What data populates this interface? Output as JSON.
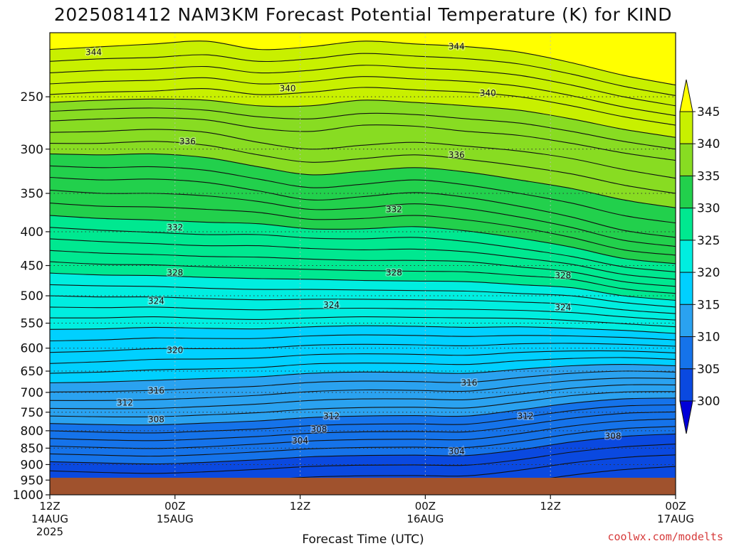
{
  "chart_data": {
    "type": "heatmap",
    "title": "2025081412 NAM3KM Forecast Potential Temperature (K) for KIND",
    "xlabel": "Forecast Time (UTC)",
    "ylabel": "",
    "credit": "coolwx.com/modelts",
    "y_axis": {
      "scale": "log",
      "range": [
        1000,
        200
      ],
      "ticks": [
        "250",
        "300",
        "350",
        "400",
        "450",
        "500",
        "550",
        "600",
        "650",
        "700",
        "750",
        "800",
        "850",
        "900",
        "950",
        "1000"
      ]
    },
    "x_axis": {
      "range": [
        "2025-08-14 12Z",
        "2025-08-17 00Z"
      ],
      "ticks": [
        {
          "l1": "12Z",
          "l2": "14AUG",
          "l3": "2025"
        },
        {
          "l1": "00Z",
          "l2": "15AUG",
          "l3": ""
        },
        {
          "l1": "12Z",
          "l2": "",
          "l3": ""
        },
        {
          "l1": "00Z",
          "l2": "16AUG",
          "l3": ""
        },
        {
          "l1": "12Z",
          "l2": "",
          "l3": ""
        },
        {
          "l1": "00Z",
          "l2": "17AUG",
          "l3": ""
        }
      ]
    },
    "grid": true,
    "colorbar": {
      "position": "right",
      "labels": [
        "300",
        "305",
        "310",
        "315",
        "320",
        "325",
        "330",
        "335",
        "340",
        "345"
      ],
      "colors": [
        "#0000d8",
        "#0a49e0",
        "#1573ea",
        "#2aa2f0",
        "#00d0ff",
        "#00eee0",
        "#00e890",
        "#22d04c",
        "#88dc22",
        "#c8f000",
        "#ffff00"
      ]
    },
    "contour_labels": [
      {
        "text": "344",
        "t": 0.07,
        "p": 214
      },
      {
        "text": "344",
        "t": 0.65,
        "p": 210
      },
      {
        "text": "340",
        "t": 0.38,
        "p": 243
      },
      {
        "text": "340",
        "t": 0.7,
        "p": 247
      },
      {
        "text": "336",
        "t": 0.22,
        "p": 292
      },
      {
        "text": "336",
        "t": 0.65,
        "p": 306
      },
      {
        "text": "332",
        "t": 0.2,
        "p": 394
      },
      {
        "text": "332",
        "t": 0.55,
        "p": 370
      },
      {
        "text": "328",
        "t": 0.2,
        "p": 461
      },
      {
        "text": "328",
        "t": 0.55,
        "p": 461
      },
      {
        "text": "328",
        "t": 0.82,
        "p": 466
      },
      {
        "text": "324",
        "t": 0.17,
        "p": 509
      },
      {
        "text": "324",
        "t": 0.45,
        "p": 516
      },
      {
        "text": "324",
        "t": 0.82,
        "p": 521
      },
      {
        "text": "320",
        "t": 0.2,
        "p": 604
      },
      {
        "text": "316",
        "t": 0.17,
        "p": 696
      },
      {
        "text": "316",
        "t": 0.67,
        "p": 677
      },
      {
        "text": "312",
        "t": 0.12,
        "p": 726
      },
      {
        "text": "312",
        "t": 0.45,
        "p": 761
      },
      {
        "text": "312",
        "t": 0.76,
        "p": 761
      },
      {
        "text": "308",
        "t": 0.17,
        "p": 769
      },
      {
        "text": "308",
        "t": 0.43,
        "p": 796
      },
      {
        "text": "308",
        "t": 0.9,
        "p": 815
      },
      {
        "text": "304",
        "t": 0.4,
        "p": 828
      },
      {
        "text": "304",
        "t": 0.65,
        "p": 860
      }
    ],
    "series": [
      {
        "level": 345,
        "p": [
          200,
          200,
          200,
          200,
          200,
          200,
          200,
          200,
          200,
          200,
          200,
          200,
          200
        ]
      },
      {
        "level": 344,
        "p": [
          212,
          210,
          208,
          206,
          212,
          210,
          206,
          208,
          210,
          214,
          222,
          232,
          240
        ]
      },
      {
        "level": 343,
        "p": [
          221,
          219,
          218,
          216,
          221,
          219,
          215,
          217,
          219,
          223,
          231,
          241,
          249
        ]
      },
      {
        "level": 342,
        "p": [
          230,
          228,
          227,
          225,
          230,
          228,
          224,
          226,
          228,
          232,
          240,
          250,
          258
        ]
      },
      {
        "level": 341,
        "p": [
          239,
          237,
          236,
          234,
          239,
          237,
          233,
          235,
          237,
          241,
          249,
          259,
          267
        ]
      },
      {
        "level": 340,
        "p": [
          248,
          246,
          245,
          243,
          248,
          246,
          242,
          244,
          246,
          250,
          258,
          268,
          276
        ]
      },
      {
        "level": 339,
        "p": [
          255,
          253,
          252,
          253,
          258,
          258,
          253,
          255,
          258,
          262,
          270,
          280,
          288
        ]
      },
      {
        "level": 338,
        "p": [
          263,
          261,
          260,
          262,
          268,
          270,
          265,
          266,
          270,
          274,
          282,
          292,
          300
        ]
      },
      {
        "level": 337,
        "p": [
          272,
          270,
          269,
          271,
          279,
          282,
          276,
          277,
          282,
          286,
          294,
          304,
          312
        ]
      },
      {
        "level": 336,
        "p": [
          283,
          282,
          280,
          283,
          293,
          300,
          296,
          293,
          297,
          302,
          310,
          322,
          332
        ]
      },
      {
        "level": 335,
        "p": [
          294,
          294,
          292,
          296,
          306,
          314,
          310,
          306,
          311,
          318,
          327,
          340,
          350
        ]
      },
      {
        "level": 334,
        "p": [
          305,
          306,
          305,
          309,
          319,
          328,
          324,
          320,
          325,
          334,
          344,
          358,
          368
        ]
      },
      {
        "level": 333,
        "p": [
          318,
          320,
          319,
          323,
          333,
          343,
          339,
          334,
          340,
          350,
          362,
          378,
          388
        ]
      },
      {
        "level": 332,
        "p": [
          331,
          334,
          333,
          337,
          347,
          358,
          354,
          349,
          355,
          366,
          380,
          398,
          408
        ]
      },
      {
        "level": 331,
        "p": [
          346,
          350,
          350,
          353,
          360,
          370,
          368,
          363,
          369,
          380,
          394,
          412,
          421
        ]
      },
      {
        "level": 330,
        "p": [
          362,
          366,
          367,
          370,
          374,
          383,
          382,
          378,
          384,
          394,
          408,
          426,
          434
        ]
      },
      {
        "level": 329,
        "p": [
          378,
          382,
          384,
          387,
          389,
          396,
          396,
          393,
          399,
          409,
          422,
          439,
          447
        ]
      },
      {
        "level": 328,
        "p": [
          394,
          398,
          401,
          404,
          404,
          409,
          410,
          408,
          414,
          424,
          436,
          452,
          460
        ]
      },
      {
        "level": 327,
        "p": [
          410,
          414,
          417,
          420,
          420,
          424,
          426,
          425,
          429,
          438,
          448,
          464,
          472
        ]
      },
      {
        "level": 326,
        "p": [
          427,
          431,
          433,
          436,
          437,
          440,
          442,
          442,
          444,
          452,
          460,
          476,
          484
        ]
      },
      {
        "level": 325,
        "p": [
          444,
          448,
          449,
          452,
          454,
          456,
          458,
          459,
          460,
          466,
          472,
          488,
          496
        ]
      },
      {
        "level": 324,
        "p": [
          462,
          465,
          466,
          469,
          471,
          472,
          474,
          475,
          476,
          481,
          486,
          500,
          508
        ]
      },
      {
        "level": 323,
        "p": [
          481,
          483,
          484,
          487,
          489,
          489,
          490,
          491,
          492,
          496,
          500,
          512,
          520
        ]
      },
      {
        "level": 322,
        "p": [
          500,
          502,
          502,
          505,
          507,
          506,
          506,
          507,
          508,
          511,
          515,
          525,
          532
        ]
      },
      {
        "level": 321,
        "p": [
          520,
          521,
          520,
          523,
          525,
          523,
          522,
          523,
          524,
          526,
          530,
          538,
          544
        ]
      },
      {
        "level": 320,
        "p": [
          540,
          540,
          538,
          541,
          543,
          540,
          538,
          539,
          540,
          541,
          545,
          551,
          557
        ]
      },
      {
        "level": 319,
        "p": [
          562,
          561,
          558,
          560,
          561,
          557,
          555,
          556,
          558,
          557,
          560,
          564,
          570
        ]
      },
      {
        "level": 318,
        "p": [
          585,
          583,
          579,
          580,
          580,
          575,
          573,
          574,
          576,
          574,
          575,
          578,
          583
        ]
      },
      {
        "level": 317,
        "p": [
          609,
          606,
          601,
          601,
          600,
          594,
          592,
          593,
          595,
          591,
          590,
          592,
          596
        ]
      },
      {
        "level": 316,
        "p": [
          633,
          629,
          624,
          623,
          621,
          614,
          612,
          613,
          615,
          609,
          606,
          606,
          610
        ]
      },
      {
        "level": 315,
        "p": [
          655,
          652,
          647,
          645,
          642,
          634,
          632,
          633,
          635,
          627,
          622,
          620,
          624
        ]
      },
      {
        "level": 314,
        "p": [
          677,
          675,
          671,
          667,
          663,
          655,
          652,
          653,
          655,
          646,
          638,
          635,
          638
        ]
      },
      {
        "level": 313,
        "p": [
          699,
          698,
          695,
          690,
          685,
          676,
          673,
          674,
          676,
          665,
          655,
          650,
          652
        ]
      },
      {
        "level": 312,
        "p": [
          720,
          720,
          718,
          713,
          707,
          698,
          694,
          695,
          697,
          684,
          672,
          666,
          667
        ]
      },
      {
        "level": 311,
        "p": [
          740,
          741,
          740,
          735,
          729,
          720,
          716,
          716,
          718,
          704,
          690,
          682,
          682
        ]
      },
      {
        "level": 310,
        "p": [
          760,
          762,
          762,
          757,
          751,
          742,
          738,
          737,
          739,
          724,
          708,
          699,
          698
        ]
      },
      {
        "level": 309,
        "p": [
          780,
          783,
          784,
          779,
          773,
          764,
          760,
          759,
          760,
          744,
          727,
          716,
          714
        ]
      },
      {
        "level": 308,
        "p": [
          800,
          804,
          806,
          801,
          795,
          786,
          782,
          781,
          782,
          765,
          746,
          734,
          731
        ]
      },
      {
        "level": 307,
        "p": [
          822,
          826,
          828,
          823,
          816,
          807,
          803,
          802,
          803,
          786,
          766,
          753,
          749
        ]
      },
      {
        "level": 306,
        "p": [
          844,
          848,
          851,
          846,
          838,
          829,
          825,
          824,
          825,
          808,
          787,
          773,
          768
        ]
      },
      {
        "level": 305,
        "p": [
          867,
          871,
          874,
          869,
          861,
          852,
          848,
          847,
          848,
          831,
          809,
          794,
          788
        ]
      },
      {
        "level": 304,
        "p": [
          891,
          895,
          898,
          893,
          885,
          876,
          872,
          871,
          872,
          855,
          832,
          816,
          809
        ]
      },
      {
        "level": 303,
        "p": [
          920,
          925,
          928,
          923,
          915,
          906,
          902,
          901,
          902,
          885,
          862,
          846,
          838
        ]
      },
      {
        "level": 302,
        "p": [
          952,
          960,
          965,
          960,
          950,
          940,
          936,
          935,
          936,
          918,
          895,
          878,
          870
        ]
      },
      {
        "level": 301,
        "p": [
          986,
          1000,
          1000,
          1000,
          995,
          982,
          976,
          975,
          976,
          958,
          934,
          916,
          906
        ]
      }
    ]
  }
}
